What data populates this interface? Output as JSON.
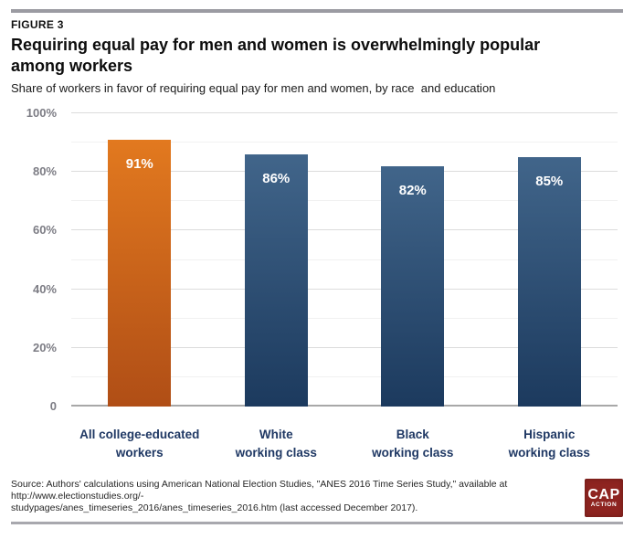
{
  "figure_label": "FIGURE 3",
  "title_lines": [
    "Requiring equal pay for men and women is overwhelmingly popular",
    "among workers"
  ],
  "subtitle": "Share of workers in favor of requiring equal pay for men and women, by race  and education",
  "chart_data": {
    "type": "bar",
    "title": "Requiring equal pay for men and women is overwhelmingly popular among workers",
    "subtitle": "Share of workers in favor of requiring equal pay for men and women, by race and education",
    "categories": [
      "All college-educated workers",
      "White working class",
      "Black working class",
      "Hispanic working class"
    ],
    "category_lines": [
      [
        "All college-educated",
        "workers"
      ],
      [
        "White",
        "working class"
      ],
      [
        "Black",
        "working class"
      ],
      [
        "Hispanic",
        "working class"
      ]
    ],
    "values": [
      91,
      86,
      82,
      85
    ],
    "value_labels": [
      "91%",
      "86%",
      "82%",
      "85%"
    ],
    "ylim": [
      0,
      100
    ],
    "yticks": [
      0,
      20,
      40,
      60,
      80,
      100
    ],
    "ytick_labels": [
      "0",
      "20%",
      "40%",
      "60%",
      "80%",
      "100%"
    ],
    "minor_gridlines": [
      10,
      30,
      50,
      70,
      90
    ],
    "grid": true,
    "legend": false,
    "bar_gradient_top": [
      "#e2791f",
      "#41658a",
      "#41658a",
      "#41658a"
    ],
    "bar_gradient_bottom": [
      "#b04e16",
      "#1c3a5e",
      "#1c3a5e",
      "#1c3a5e"
    ]
  },
  "colors": {
    "accent_orange": "#e2791f",
    "accent_blue": "#41658a",
    "category_label_navy": "#1f3864",
    "axis_label_gray": "#7c7c84",
    "major_gridline": "#dcdcdc",
    "minor_gridline": "#f1f1f1",
    "baseline": "#a8a8a8",
    "divider_gray": "#9b9ba2",
    "logo_red": "#8e2420"
  },
  "source": {
    "line1": "Source: Authors' calculations using American National Election Studies, \"ANES 2016 Time Series Study,\" available at http://www.electionstudies.org/-",
    "line2": "studypages/anes_timeseries_2016/anes_timeseries_2016.htm (last accessed December 2017)."
  },
  "logo": {
    "top": "CAP",
    "bottom": "ACTION"
  }
}
